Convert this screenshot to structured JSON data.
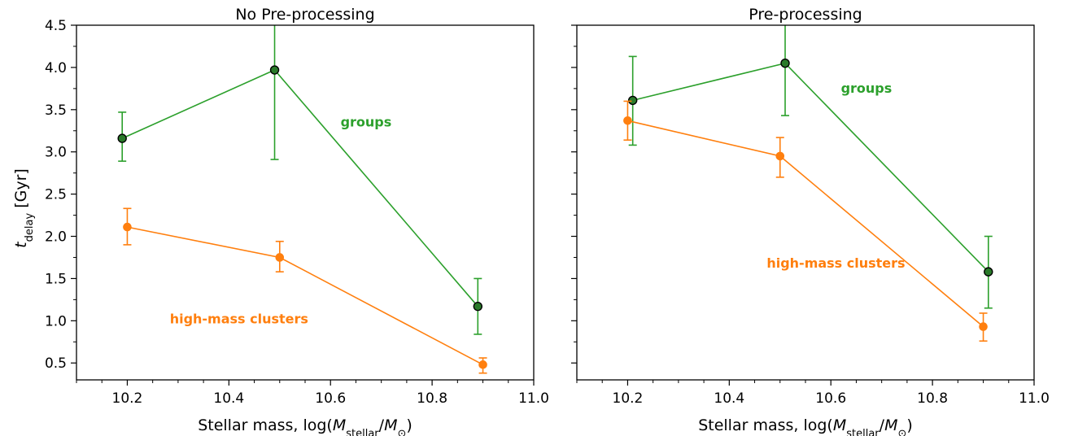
{
  "chart_data": [
    {
      "type": "line",
      "title": "No Pre-processing",
      "xlabel": "Stellar mass, log(M_stellar/M_⊙)",
      "ylabel": "t_delay [Gyr]",
      "xlim": [
        10.1,
        11.0
      ],
      "ylim": [
        0.3,
        4.5
      ],
      "x_ticks": [
        "10.2",
        "10.4",
        "10.6",
        "10.8",
        "11.0"
      ],
      "y_ticks": [
        "0.5",
        "1.0",
        "1.5",
        "2.0",
        "2.5",
        "3.0",
        "3.5",
        "4.0",
        "4.5"
      ],
      "series": [
        {
          "name": "groups",
          "color": "#2ca02c",
          "marker_fill": "#2a7a2a",
          "x": [
            10.19,
            10.49,
            10.89
          ],
          "y": [
            3.16,
            3.97,
            1.17
          ],
          "err_low": [
            2.89,
            2.91,
            0.84
          ],
          "err_high": [
            3.47,
            4.55,
            1.5
          ]
        },
        {
          "name": "high-mass clusters",
          "color": "#ff7f0e",
          "marker_fill": "#ff7f0e",
          "x": [
            10.2,
            10.5,
            10.9
          ],
          "y": [
            2.11,
            1.75,
            0.48
          ],
          "err_low": [
            1.9,
            1.58,
            0.38
          ],
          "err_high": [
            2.33,
            1.94,
            0.56
          ]
        }
      ],
      "annotations": [
        {
          "text": "groups",
          "x": 10.67,
          "y": 3.3,
          "color": "#2ca02c"
        },
        {
          "text": "high-mass clusters",
          "x": 10.42,
          "y": 0.97,
          "color": "#ff7f0e"
        }
      ]
    },
    {
      "type": "line",
      "title": "Pre-processing",
      "xlabel": "Stellar mass, log(M_stellar/M_⊙)",
      "ylabel": "",
      "xlim": [
        10.1,
        11.0
      ],
      "ylim": [
        0.3,
        4.5
      ],
      "x_ticks": [
        "10.2",
        "10.4",
        "10.6",
        "10.8",
        "11.0"
      ],
      "y_ticks": [],
      "series": [
        {
          "name": "groups",
          "color": "#2ca02c",
          "marker_fill": "#2a7a2a",
          "x": [
            10.21,
            10.51,
            10.91
          ],
          "y": [
            3.61,
            4.05,
            1.58
          ],
          "err_low": [
            3.08,
            3.43,
            1.15
          ],
          "err_high": [
            4.13,
            4.55,
            2.0
          ]
        },
        {
          "name": "high-mass clusters",
          "color": "#ff7f0e",
          "marker_fill": "#ff7f0e",
          "x": [
            10.2,
            10.5,
            10.9
          ],
          "y": [
            3.37,
            2.95,
            0.93
          ],
          "err_low": [
            3.14,
            2.7,
            0.76
          ],
          "err_high": [
            3.6,
            3.17,
            1.09
          ]
        }
      ],
      "annotations": [
        {
          "text": "groups",
          "x": 10.67,
          "y": 3.7,
          "color": "#2ca02c"
        },
        {
          "text": "high-mass clusters",
          "x": 10.61,
          "y": 1.63,
          "color": "#ff7f0e"
        }
      ]
    }
  ]
}
